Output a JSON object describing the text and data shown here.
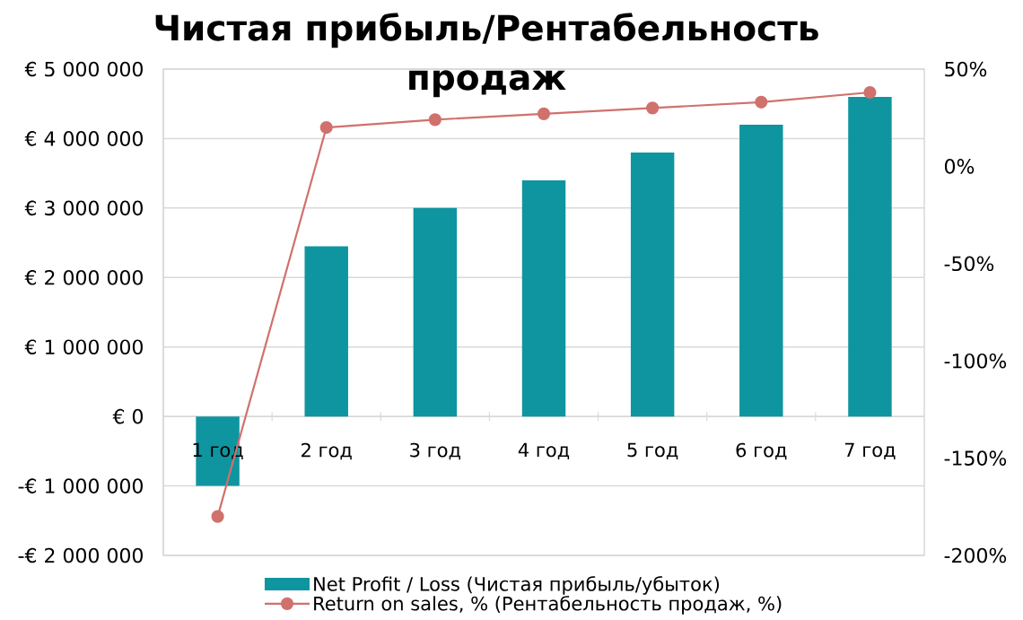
{
  "chart_data": {
    "type": "bar",
    "title": "Чистая прибыль/Рентабельность продаж",
    "categories": [
      "1 год",
      "2 год",
      "3 год",
      "4 год",
      "5 год",
      "6 год",
      "7 год"
    ],
    "series": [
      {
        "name": "Net Profit / Loss (Чистая прибыль/убыток)",
        "color": "#0f959f",
        "values": [
          -1000000,
          2450000,
          3000000,
          3400000,
          3800000,
          4200000,
          4600000
        ]
      },
      {
        "name": "Return on sales, % (Рентабельность продаж, %)",
        "type": "line",
        "axis": "y2",
        "color": "#d0716d",
        "marker": "circle",
        "line_style": "solid",
        "values": [
          -180,
          20,
          24,
          27,
          30,
          33,
          38
        ]
      }
    ],
    "ylim": [
      -2000000,
      5000000
    ],
    "yticks": [
      {
        "value": -2000000,
        "label": "-€ 2 000 000"
      },
      {
        "value": -1000000,
        "label": "-€ 1 000 000"
      },
      {
        "value": 0,
        "label": "€ 0"
      },
      {
        "value": 1000000,
        "label": "€ 1 000 000"
      },
      {
        "value": 2000000,
        "label": "€ 2 000 000"
      },
      {
        "value": 3000000,
        "label": "€ 3 000 000"
      },
      {
        "value": 4000000,
        "label": "€ 4 000 000"
      },
      {
        "value": 5000000,
        "label": "€ 5 000 000"
      }
    ],
    "y2lim": [
      -200,
      50
    ],
    "y2ticks": [
      {
        "value": -200,
        "label": "-200%"
      },
      {
        "value": -150,
        "label": "-150%"
      },
      {
        "value": -100,
        "label": "-100%"
      },
      {
        "value": -50,
        "label": "-50%"
      },
      {
        "value": 0,
        "label": "0%"
      },
      {
        "value": 50,
        "label": "50%"
      }
    ],
    "grid": "y",
    "legend": "bottom"
  }
}
